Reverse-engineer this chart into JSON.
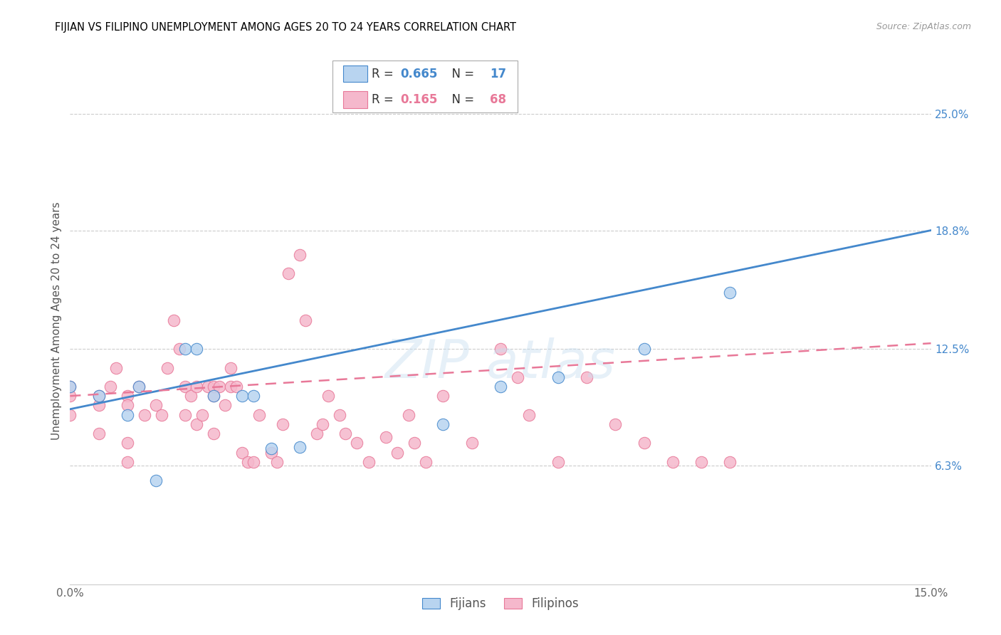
{
  "title": "FIJIAN VS FILIPINO UNEMPLOYMENT AMONG AGES 20 TO 24 YEARS CORRELATION CHART",
  "source": "Source: ZipAtlas.com",
  "ylabel": "Unemployment Among Ages 20 to 24 years",
  "xlim": [
    0.0,
    0.15
  ],
  "ylim": [
    0.0,
    0.28
  ],
  "fijian_R": 0.665,
  "fijian_N": 17,
  "filipino_R": 0.165,
  "filipino_N": 68,
  "fijian_color": "#b8d4f0",
  "filipino_color": "#f5b8cc",
  "fijian_line_color": "#4488cc",
  "filipino_line_color": "#e87898",
  "ytick_vals": [
    0.063,
    0.125,
    0.188,
    0.25
  ],
  "ytick_labels": [
    "6.3%",
    "12.5%",
    "18.8%",
    "25.0%"
  ],
  "fijians_x": [
    0.0,
    0.005,
    0.01,
    0.012,
    0.015,
    0.02,
    0.022,
    0.025,
    0.03,
    0.032,
    0.035,
    0.04,
    0.065,
    0.075,
    0.085,
    0.1,
    0.115
  ],
  "fijians_y": [
    0.105,
    0.1,
    0.09,
    0.105,
    0.055,
    0.125,
    0.125,
    0.1,
    0.1,
    0.1,
    0.072,
    0.073,
    0.085,
    0.105,
    0.11,
    0.125,
    0.155
  ],
  "filipinos_x": [
    0.0,
    0.0,
    0.0,
    0.005,
    0.005,
    0.005,
    0.007,
    0.008,
    0.01,
    0.01,
    0.01,
    0.01,
    0.012,
    0.013,
    0.015,
    0.016,
    0.017,
    0.018,
    0.019,
    0.02,
    0.02,
    0.021,
    0.022,
    0.022,
    0.023,
    0.024,
    0.025,
    0.025,
    0.025,
    0.026,
    0.027,
    0.028,
    0.028,
    0.029,
    0.03,
    0.031,
    0.032,
    0.033,
    0.035,
    0.036,
    0.037,
    0.038,
    0.04,
    0.041,
    0.043,
    0.044,
    0.045,
    0.047,
    0.048,
    0.05,
    0.052,
    0.055,
    0.057,
    0.059,
    0.06,
    0.062,
    0.065,
    0.07,
    0.075,
    0.078,
    0.08,
    0.085,
    0.09,
    0.095,
    0.1,
    0.105,
    0.11,
    0.115
  ],
  "filipinos_y": [
    0.105,
    0.1,
    0.09,
    0.08,
    0.095,
    0.1,
    0.105,
    0.115,
    0.1,
    0.095,
    0.075,
    0.065,
    0.105,
    0.09,
    0.095,
    0.09,
    0.115,
    0.14,
    0.125,
    0.105,
    0.09,
    0.1,
    0.105,
    0.085,
    0.09,
    0.105,
    0.1,
    0.105,
    0.08,
    0.105,
    0.095,
    0.115,
    0.105,
    0.105,
    0.07,
    0.065,
    0.065,
    0.09,
    0.07,
    0.065,
    0.085,
    0.165,
    0.175,
    0.14,
    0.08,
    0.085,
    0.1,
    0.09,
    0.08,
    0.075,
    0.065,
    0.078,
    0.07,
    0.09,
    0.075,
    0.065,
    0.1,
    0.075,
    0.125,
    0.11,
    0.09,
    0.065,
    0.11,
    0.085,
    0.075,
    0.065,
    0.065,
    0.065
  ]
}
